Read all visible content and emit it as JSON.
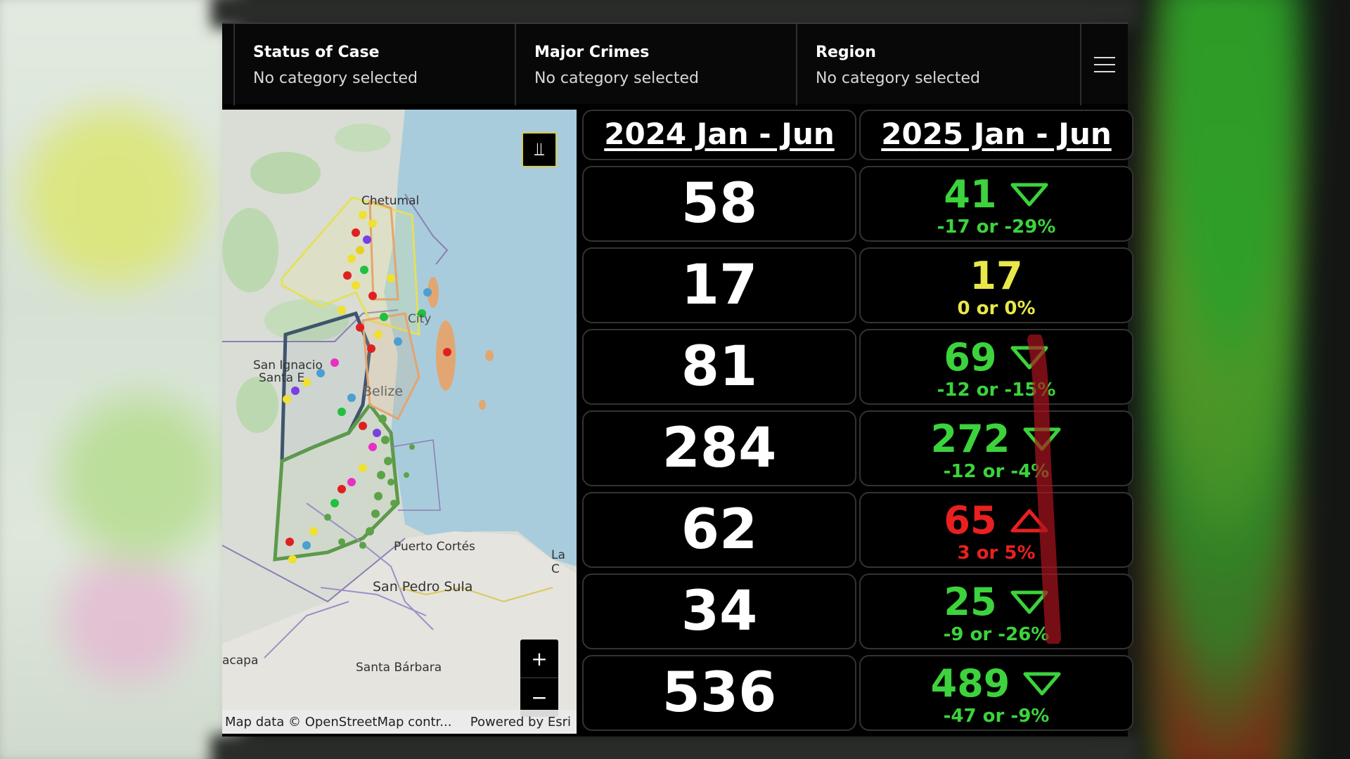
{
  "filters": [
    {
      "title": "Status of Case",
      "value": "No category selected"
    },
    {
      "title": "Major Crimes",
      "value": "No category selected"
    },
    {
      "title": "Region",
      "value": "No category selected"
    }
  ],
  "map": {
    "labels": {
      "chetumal": "Chetumal",
      "city": "City",
      "san_ignacio": "San Ignacio",
      "santa": "Santa E",
      "belize": "Belize",
      "puerto_cortes": "Puerto Cortés",
      "la_c": "La C",
      "san_pedro_sula": "San Pedro Sula",
      "acapa": "acapa",
      "santa_barbara": "Santa Bárbara"
    },
    "attribution_left": "Map data © OpenStreetMap contr...",
    "attribution_right": "Powered by Esri",
    "zoom_in": "+",
    "zoom_out": "−",
    "toggle_icon": "double-chevron-down-icon"
  },
  "periods": {
    "a": "2024 Jan - Jun",
    "b": "2025 Jan - Jun"
  },
  "rows": [
    {
      "a": "58",
      "b": "41",
      "delta": "-17 or -29%",
      "trend": "down",
      "color": "green"
    },
    {
      "a": "17",
      "b": "17",
      "delta": "0 or 0%",
      "trend": "none",
      "color": "yellow"
    },
    {
      "a": "81",
      "b": "69",
      "delta": "-12 or -15%",
      "trend": "down",
      "color": "green"
    },
    {
      "a": "284",
      "b": "272",
      "delta": "-12 or -4%",
      "trend": "down",
      "color": "green"
    },
    {
      "a": "62",
      "b": "65",
      "delta": "3 or 5%",
      "trend": "up",
      "color": "red"
    },
    {
      "a": "34",
      "b": "25",
      "delta": "-9 or -26%",
      "trend": "down",
      "color": "green"
    },
    {
      "a": "536",
      "b": "489",
      "delta": "-47 or -9%",
      "trend": "down",
      "color": "green"
    }
  ],
  "colors": {
    "down": "#3cd33c",
    "flat": "#e8e84a",
    "up": "#ea2020"
  }
}
